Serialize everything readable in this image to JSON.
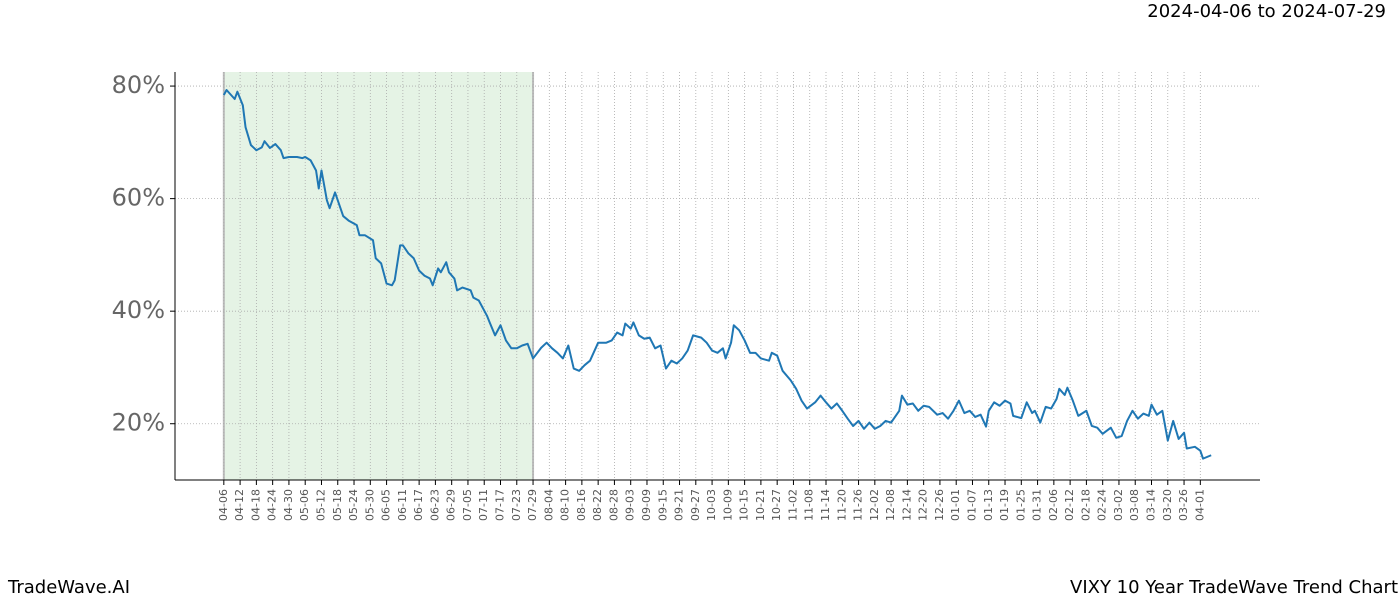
{
  "chart_data": {
    "type": "line",
    "title": "VIXY 10 Year TradeWave Trend Chart",
    "subtitle": "2024-04-06 to 2024-07-29",
    "source": "TradeWave.AI",
    "color": "#1f77b4",
    "highlight_x": [
      0,
      114
    ],
    "highlight_color": "#2ca02c",
    "grid": true,
    "xlim": [
      -18,
      382
    ],
    "ylim": [
      10,
      82.5
    ],
    "yticks": [
      {
        "value": 20,
        "label": "20%"
      },
      {
        "value": 40,
        "label": "40%"
      },
      {
        "value": 60,
        "label": "60%"
      },
      {
        "value": 80,
        "label": "80%"
      }
    ],
    "xticks": [
      {
        "value": 0,
        "label": "04-06"
      },
      {
        "value": 6,
        "label": "04-12"
      },
      {
        "value": 12,
        "label": "04-18"
      },
      {
        "value": 18,
        "label": "04-24"
      },
      {
        "value": 24,
        "label": "04-30"
      },
      {
        "value": 30,
        "label": "05-06"
      },
      {
        "value": 36,
        "label": "05-12"
      },
      {
        "value": 42,
        "label": "05-18"
      },
      {
        "value": 48,
        "label": "05-24"
      },
      {
        "value": 54,
        "label": "05-30"
      },
      {
        "value": 60,
        "label": "06-05"
      },
      {
        "value": 66,
        "label": "06-11"
      },
      {
        "value": 72,
        "label": "06-17"
      },
      {
        "value": 78,
        "label": "06-23"
      },
      {
        "value": 84,
        "label": "06-29"
      },
      {
        "value": 90,
        "label": "07-05"
      },
      {
        "value": 96,
        "label": "07-11"
      },
      {
        "value": 102,
        "label": "07-17"
      },
      {
        "value": 108,
        "label": "07-23"
      },
      {
        "value": 114,
        "label": "07-29"
      },
      {
        "value": 120,
        "label": "08-04"
      },
      {
        "value": 126,
        "label": "08-10"
      },
      {
        "value": 132,
        "label": "08-16"
      },
      {
        "value": 138,
        "label": "08-22"
      },
      {
        "value": 144,
        "label": "08-28"
      },
      {
        "value": 150,
        "label": "09-03"
      },
      {
        "value": 156,
        "label": "09-09"
      },
      {
        "value": 162,
        "label": "09-15"
      },
      {
        "value": 168,
        "label": "09-21"
      },
      {
        "value": 174,
        "label": "09-27"
      },
      {
        "value": 180,
        "label": "10-03"
      },
      {
        "value": 186,
        "label": "10-09"
      },
      {
        "value": 192,
        "label": "10-15"
      },
      {
        "value": 198,
        "label": "10-21"
      },
      {
        "value": 204,
        "label": "10-27"
      },
      {
        "value": 210,
        "label": "11-02"
      },
      {
        "value": 216,
        "label": "11-08"
      },
      {
        "value": 222,
        "label": "11-14"
      },
      {
        "value": 228,
        "label": "11-20"
      },
      {
        "value": 234,
        "label": "11-26"
      },
      {
        "value": 240,
        "label": "12-02"
      },
      {
        "value": 246,
        "label": "12-08"
      },
      {
        "value": 252,
        "label": "12-14"
      },
      {
        "value": 258,
        "label": "12-20"
      },
      {
        "value": 264,
        "label": "12-26"
      },
      {
        "value": 270,
        "label": "01-01"
      },
      {
        "value": 276,
        "label": "01-07"
      },
      {
        "value": 282,
        "label": "01-13"
      },
      {
        "value": 288,
        "label": "01-19"
      },
      {
        "value": 294,
        "label": "01-25"
      },
      {
        "value": 300,
        "label": "01-31"
      },
      {
        "value": 306,
        "label": "02-06"
      },
      {
        "value": 312,
        "label": "02-12"
      },
      {
        "value": 318,
        "label": "02-18"
      },
      {
        "value": 324,
        "label": "02-24"
      },
      {
        "value": 330,
        "label": "03-02"
      },
      {
        "value": 336,
        "label": "03-08"
      },
      {
        "value": 342,
        "label": "03-14"
      },
      {
        "value": 348,
        "label": "03-20"
      },
      {
        "value": 354,
        "label": "03-26"
      },
      {
        "value": 360,
        "label": "04-01"
      }
    ],
    "x": [
      0,
      1,
      4,
      5,
      7,
      8,
      10,
      12,
      14,
      15,
      17,
      19,
      21,
      22,
      24,
      27,
      29,
      30,
      32,
      34,
      35,
      36,
      38,
      39,
      41,
      42,
      44,
      46,
      49,
      50,
      52,
      55,
      56,
      58,
      60,
      62,
      63,
      65,
      66,
      68,
      70,
      72,
      74,
      76,
      77,
      79,
      80,
      82,
      83,
      85,
      86,
      88,
      91,
      92,
      94,
      97,
      98,
      100,
      102,
      104,
      106,
      108,
      110,
      112,
      114,
      117,
      119,
      121,
      123,
      125,
      127,
      129,
      131,
      133,
      135,
      138,
      141,
      143,
      145,
      147,
      148,
      150,
      151,
      153,
      155,
      157,
      159,
      161,
      163,
      165,
      167,
      169,
      171,
      173,
      176,
      178,
      180,
      182,
      184,
      185,
      187,
      188,
      190,
      192,
      194,
      196,
      198,
      201,
      202,
      204,
      206,
      209,
      211,
      213,
      215,
      218,
      220,
      222,
      224,
      226,
      228,
      230,
      232,
      234,
      236,
      238,
      240,
      242,
      244,
      246,
      249,
      250,
      252,
      254,
      256,
      258,
      260,
      263,
      265,
      267,
      269,
      271,
      273,
      275,
      277,
      279,
      281,
      282,
      284,
      286,
      288,
      290,
      291,
      294,
      296,
      298,
      299,
      301,
      303,
      305,
      307,
      308,
      310,
      311,
      313,
      315,
      318,
      320,
      322,
      324,
      327,
      329,
      331,
      333,
      335,
      337,
      339,
      341,
      342,
      344,
      346,
      348,
      350,
      352,
      354,
      355,
      358,
      360,
      361,
      364
    ],
    "values": [
      78.4,
      79.3,
      77.7,
      79,
      76.6,
      72.7,
      69.5,
      68.6,
      69.1,
      70.2,
      69,
      69.7,
      68.6,
      67.2,
      67.4,
      67.4,
      67.2,
      67.4,
      66.8,
      65,
      61.8,
      65,
      59.7,
      58.3,
      61.1,
      59.7,
      56.9,
      56.1,
      55.3,
      53.5,
      53.5,
      52.6,
      49.4,
      48.5,
      44.9,
      44.6,
      45.5,
      51.7,
      51.7,
      50.3,
      49.4,
      47.2,
      46.3,
      45.8,
      44.6,
      47.6,
      46.9,
      48.7,
      46.9,
      45.8,
      43.7,
      44.2,
      43.7,
      42.4,
      41.9,
      39.2,
      38,
      35.7,
      37.5,
      34.8,
      33.4,
      33.4,
      33.9,
      34.2,
      31.6,
      33.5,
      34.4,
      33.4,
      32.6,
      31.6,
      33.9,
      29.8,
      29.4,
      30.4,
      31.2,
      34.4,
      34.4,
      34.8,
      36.2,
      35.7,
      37.8,
      36.9,
      38,
      35.7,
      35.1,
      35.3,
      33.4,
      33.9,
      29.8,
      31.2,
      30.7,
      31.6,
      33,
      35.7,
      35.3,
      34.4,
      33,
      32.6,
      33.4,
      31.6,
      34.4,
      37.5,
      36.6,
      34.8,
      32.6,
      32.6,
      31.6,
      31.2,
      32.6,
      32.1,
      29.4,
      27.7,
      26.2,
      24.1,
      22.7,
      23.8,
      25,
      23.8,
      22.7,
      23.6,
      22.3,
      20.9,
      19.6,
      20.5,
      19.1,
      20.2,
      19.1,
      19.6,
      20.5,
      20.2,
      22.3,
      25,
      23.4,
      23.6,
      22.3,
      23.2,
      23,
      21.6,
      21.9,
      20.9,
      22.3,
      24.1,
      21.9,
      22.3,
      21.2,
      21.6,
      19.5,
      22.3,
      23.8,
      23.2,
      24.1,
      23.6,
      21.4,
      21,
      23.8,
      21.9,
      22.3,
      20.2,
      23,
      22.7,
      24.4,
      26.2,
      25.1,
      26.4,
      24.1,
      21.4,
      22.3,
      19.6,
      19.3,
      18.2,
      19.3,
      17.5,
      17.8,
      20.5,
      22.3,
      20.9,
      21.8,
      21.4,
      23.4,
      21.6,
      22.3,
      17,
      20.5,
      17.3,
      18.4,
      15.6,
      15.9,
      15.2,
      13.8,
      14.4
    ]
  }
}
